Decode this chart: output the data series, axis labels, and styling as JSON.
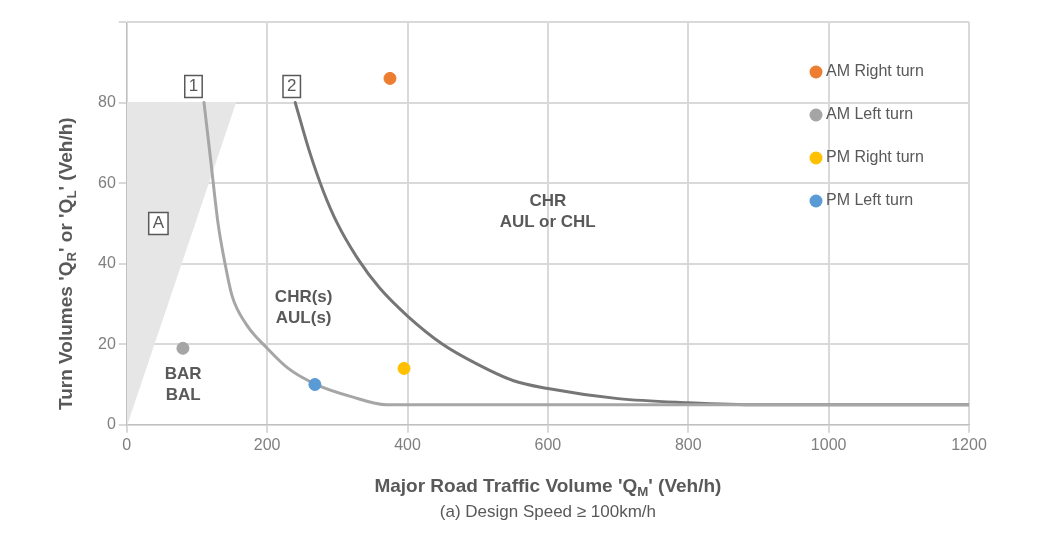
{
  "chart_data": {
    "type": "scatter",
    "xlabel": "Major Road Traffic Volume 'Q$_{M}$' (Veh/h)",
    "subtitle": "(a) Design Speed ≥ 100km/h",
    "ylabel": "Turn Volumes 'Q$_{R}$' or 'Q$_{L}$' (Veh/h)",
    "xlim": [
      0,
      1200
    ],
    "xticks": [
      0,
      200,
      400,
      600,
      800,
      1000,
      1200
    ],
    "ylim": [
      0,
      100
    ],
    "yticks": [
      0,
      20,
      40,
      60,
      80,
      {
        "value": 100,
        "label": null
      }
    ],
    "grid": true,
    "legend": "top right",
    "series": [
      {
        "type": "area",
        "color": "#e6e6e6",
        "x": [
          0,
          155,
          0
        ],
        "values": [
          0,
          80,
          80
        ]
      },
      {
        "type": "line",
        "color": "#a6a6a6",
        "x": [
          110,
          120,
          130,
          140,
          150,
          170,
          200,
          230,
          270,
          320,
          370,
          400,
          1200
        ],
        "values": [
          80,
          65,
          50,
          40,
          32,
          25,
          19,
          14,
          10,
          7,
          5,
          5,
          5
        ]
      },
      {
        "type": "line",
        "color": "#767676",
        "x": [
          240,
          260,
          280,
          300,
          330,
          360,
          400,
          450,
          500,
          550,
          600,
          700,
          800,
          900,
          1200
        ],
        "values": [
          80,
          68,
          58,
          50,
          41,
          34,
          27,
          20,
          15,
          11,
          9,
          6.5,
          5.5,
          5,
          5
        ]
      },
      {
        "name": "AM Right turn",
        "color": "#ed7d31",
        "marker": "circle",
        "x": [
          375
        ],
        "values": [
          86
        ]
      },
      {
        "name": "AM Left turn",
        "color": "#a5a5a5",
        "marker": "circle",
        "x": [
          80
        ],
        "values": [
          19
        ]
      },
      {
        "name": "PM Right turn",
        "color": "#ffc000",
        "marker": "circle",
        "x": [
          395
        ],
        "values": [
          14
        ]
      },
      {
        "name": "PM Left turn",
        "color": "#5b9bd5",
        "marker": "circle",
        "x": [
          268
        ],
        "values": [
          10
        ]
      }
    ],
    "annotations": [
      {
        "text": "1",
        "x": 95,
        "y": 84
      },
      {
        "text": "2",
        "x": 235,
        "y": 84
      },
      {
        "text": "A",
        "x": 45,
        "y": 50
      },
      "BAR\nBAL",
      "CHR(s)\nAUL(s)",
      "CHR\nAUL or CHL"
    ]
  }
}
